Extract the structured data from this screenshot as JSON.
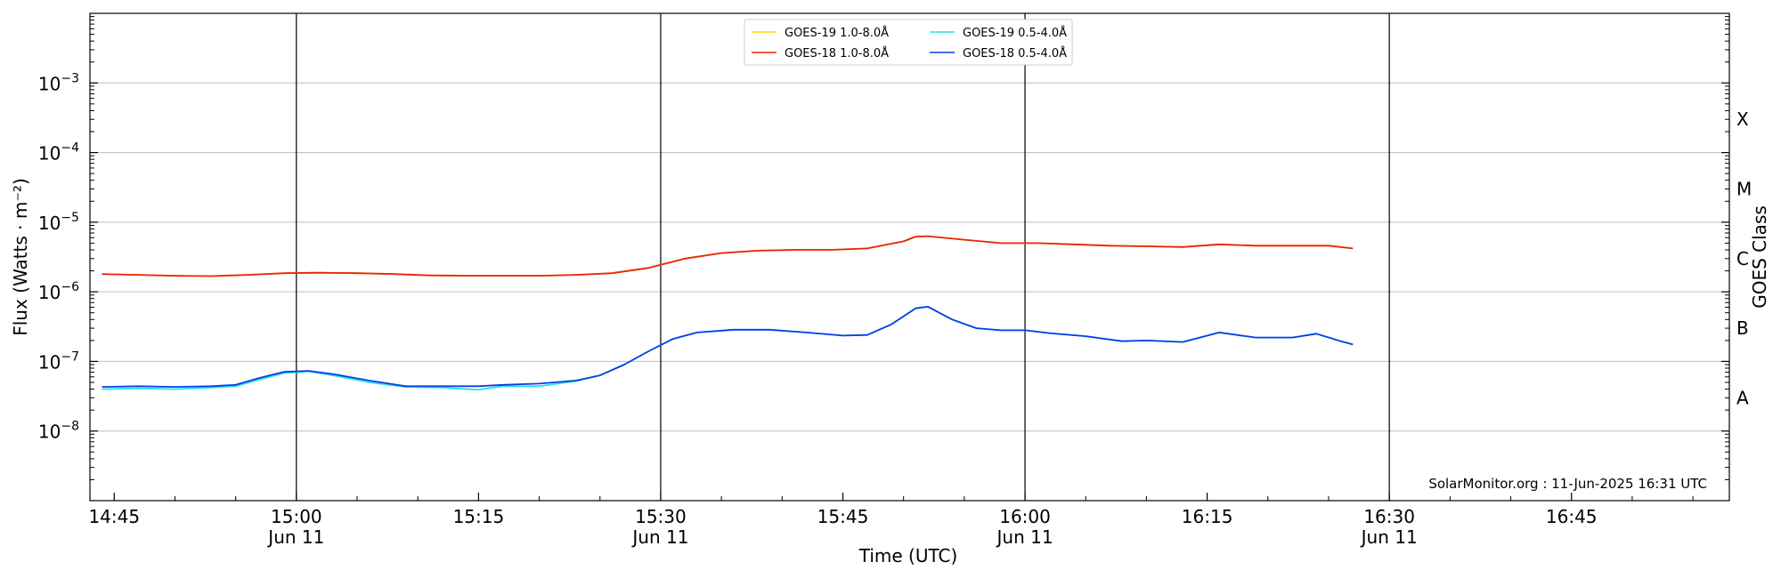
{
  "chart_data": {
    "type": "line",
    "title": "",
    "xlabel": "Time (UTC)",
    "ylabel": "Flux (Watts · m⁻²)",
    "y2label": "GOES Class",
    "yscale": "log",
    "ylim": [
      1e-09,
      0.01
    ],
    "xlim": [
      "14:43",
      "16:58"
    ],
    "grid": "horizontal",
    "legend_position": "top-center",
    "credit": "SolarMonitor.org : 11-Jun-2025 16:31 UTC",
    "x_ticks": [
      {
        "time": "14:45",
        "label": "14:45",
        "date": ""
      },
      {
        "time": "15:00",
        "label": "15:00",
        "date": "Jun 11"
      },
      {
        "time": "15:15",
        "label": "15:15",
        "date": ""
      },
      {
        "time": "15:30",
        "label": "15:30",
        "date": "Jun 11"
      },
      {
        "time": "15:45",
        "label": "15:45",
        "date": ""
      },
      {
        "time": "16:00",
        "label": "16:00",
        "date": "Jun 11"
      },
      {
        "time": "16:15",
        "label": "16:15",
        "date": ""
      },
      {
        "time": "16:30",
        "label": "16:30",
        "date": "Jun 11"
      },
      {
        "time": "16:45",
        "label": "16:45",
        "date": ""
      }
    ],
    "day_lines": [
      "15:00",
      "15:30",
      "16:00",
      "16:30"
    ],
    "y_ticks": [
      {
        "value": 1e-08,
        "exp": "−8"
      },
      {
        "value": 1e-07,
        "exp": "−7"
      },
      {
        "value": 1e-06,
        "exp": "−6"
      },
      {
        "value": 1e-05,
        "exp": "−5"
      },
      {
        "value": 0.0001,
        "exp": "−4"
      },
      {
        "value": 0.001,
        "exp": "−3"
      }
    ],
    "goes_classes": [
      {
        "label": "A",
        "value": 3e-08
      },
      {
        "label": "B",
        "value": 3e-07
      },
      {
        "label": "C",
        "value": 3e-06
      },
      {
        "label": "M",
        "value": 3e-05
      },
      {
        "label": "X",
        "value": 0.0003
      }
    ],
    "series": [
      {
        "name": "GOES-19 1.0-8.0Å",
        "color": "#ffd700",
        "x": [
          "14:44",
          "14:47",
          "14:50",
          "14:53",
          "14:56",
          "14:59",
          "15:02",
          "15:05",
          "15:08",
          "15:11",
          "15:14",
          "15:17",
          "15:20",
          "15:23",
          "15:26",
          "15:29",
          "15:32",
          "15:35",
          "15:38",
          "15:41",
          "15:44",
          "15:47",
          "15:50",
          "15:51",
          "15:52",
          "15:55",
          "15:58",
          "16:01",
          "16:04",
          "16:07",
          "16:10",
          "16:13",
          "16:16",
          "16:19",
          "16:22",
          "16:25",
          "16:27"
        ],
        "y": [
          1.8e-06,
          1.75e-06,
          1.7e-06,
          1.68e-06,
          1.75e-06,
          1.85e-06,
          1.88e-06,
          1.85e-06,
          1.8e-06,
          1.72e-06,
          1.7e-06,
          1.7e-06,
          1.7e-06,
          1.75e-06,
          1.85e-06,
          2.2e-06,
          3e-06,
          3.6e-06,
          3.9e-06,
          4e-06,
          4e-06,
          4.2e-06,
          5.3e-06,
          6.2e-06,
          6.3e-06,
          5.6e-06,
          5e-06,
          5e-06,
          4.8e-06,
          4.6e-06,
          4.5e-06,
          4.4e-06,
          4.8e-06,
          4.6e-06,
          4.6e-06,
          4.6e-06,
          4.2e-06
        ]
      },
      {
        "name": "GOES-18 1.0-8.0Å",
        "color": "#e8250c",
        "x": [
          "14:44",
          "14:47",
          "14:50",
          "14:53",
          "14:56",
          "14:59",
          "15:02",
          "15:05",
          "15:08",
          "15:11",
          "15:14",
          "15:17",
          "15:20",
          "15:23",
          "15:26",
          "15:29",
          "15:32",
          "15:35",
          "15:38",
          "15:41",
          "15:44",
          "15:47",
          "15:50",
          "15:51",
          "15:52",
          "15:55",
          "15:58",
          "16:01",
          "16:04",
          "16:07",
          "16:10",
          "16:13",
          "16:16",
          "16:19",
          "16:22",
          "16:25",
          "16:27"
        ],
        "y": [
          1.8e-06,
          1.75e-06,
          1.7e-06,
          1.68e-06,
          1.75e-06,
          1.85e-06,
          1.88e-06,
          1.85e-06,
          1.8e-06,
          1.72e-06,
          1.7e-06,
          1.7e-06,
          1.7e-06,
          1.75e-06,
          1.85e-06,
          2.2e-06,
          3e-06,
          3.6e-06,
          3.9e-06,
          4e-06,
          4e-06,
          4.2e-06,
          5.3e-06,
          6.2e-06,
          6.3e-06,
          5.6e-06,
          5e-06,
          5e-06,
          4.8e-06,
          4.6e-06,
          4.5e-06,
          4.4e-06,
          4.8e-06,
          4.6e-06,
          4.6e-06,
          4.6e-06,
          4.2e-06
        ]
      },
      {
        "name": "GOES-19 0.5-4.0Å",
        "color": "#22e0f0",
        "x": [
          "14:44",
          "14:47",
          "14:50",
          "14:53",
          "14:55",
          "14:57",
          "14:59",
          "15:01",
          "15:03",
          "15:06",
          "15:09",
          "15:12",
          "15:15",
          "15:17",
          "15:20",
          "15:23",
          "15:25",
          "15:27",
          "15:29",
          "15:31",
          "15:33",
          "15:36",
          "15:39",
          "15:42",
          "15:45",
          "15:47",
          "15:49",
          "15:51",
          "15:52",
          "15:54",
          "15:56",
          "15:58",
          "16:00",
          "16:02",
          "16:05",
          "16:08",
          "16:10",
          "16:13",
          "16:16",
          "16:19",
          "16:22",
          "16:24",
          "16:26",
          "16:27"
        ],
        "y": [
          4e-08,
          4.1e-08,
          4e-08,
          4.2e-08,
          4.4e-08,
          5.5e-08,
          6.8e-08,
          7.2e-08,
          6.3e-08,
          5e-08,
          4.3e-08,
          4.2e-08,
          3.9e-08,
          4.4e-08,
          4.4e-08,
          5.2e-08,
          6.3e-08,
          9e-08,
          1.4e-07,
          2.1e-07,
          2.6e-07,
          2.85e-07,
          2.85e-07,
          2.6e-07,
          2.35e-07,
          2.4e-07,
          3.4e-07,
          5.8e-07,
          6.1e-07,
          4e-07,
          3e-07,
          2.8e-07,
          2.8e-07,
          2.55e-07,
          2.3e-07,
          1.95e-07,
          2e-07,
          1.9e-07,
          2.6e-07,
          2.2e-07,
          2.2e-07,
          2.5e-07,
          1.95e-07,
          1.75e-07
        ]
      },
      {
        "name": "GOES-18 0.5-4.0Å",
        "color": "#0a3ee6",
        "x": [
          "14:44",
          "14:47",
          "14:50",
          "14:53",
          "14:55",
          "14:57",
          "14:59",
          "15:01",
          "15:03",
          "15:06",
          "15:09",
          "15:12",
          "15:15",
          "15:17",
          "15:20",
          "15:23",
          "15:25",
          "15:27",
          "15:29",
          "15:31",
          "15:33",
          "15:36",
          "15:39",
          "15:42",
          "15:45",
          "15:47",
          "15:49",
          "15:51",
          "15:52",
          "15:54",
          "15:56",
          "15:58",
          "16:00",
          "16:02",
          "16:05",
          "16:08",
          "16:10",
          "16:13",
          "16:16",
          "16:19",
          "16:22",
          "16:24",
          "16:26",
          "16:27"
        ],
        "y": [
          4.3e-08,
          4.4e-08,
          4.3e-08,
          4.4e-08,
          4.6e-08,
          5.8e-08,
          7.1e-08,
          7.3e-08,
          6.6e-08,
          5.3e-08,
          4.4e-08,
          4.4e-08,
          4.4e-08,
          4.6e-08,
          4.8e-08,
          5.3e-08,
          6.3e-08,
          9e-08,
          1.4e-07,
          2.1e-07,
          2.6e-07,
          2.85e-07,
          2.85e-07,
          2.6e-07,
          2.35e-07,
          2.4e-07,
          3.4e-07,
          5.8e-07,
          6.1e-07,
          4e-07,
          3e-07,
          2.8e-07,
          2.8e-07,
          2.55e-07,
          2.3e-07,
          1.95e-07,
          2e-07,
          1.9e-07,
          2.6e-07,
          2.2e-07,
          2.2e-07,
          2.5e-07,
          1.95e-07,
          1.75e-07
        ]
      }
    ]
  }
}
